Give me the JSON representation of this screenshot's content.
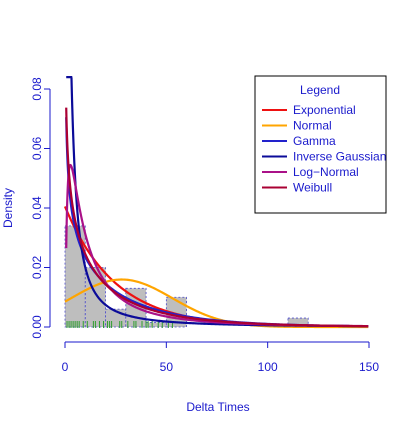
{
  "chart_data": {
    "type": "histogram-density",
    "xlabel": "Delta Times",
    "ylabel": "Density",
    "xlim": [
      0,
      150
    ],
    "ylim": [
      0,
      0.08
    ],
    "x_ticks": [
      "0",
      "50",
      "100",
      "150"
    ],
    "y_ticks": [
      "0.00",
      "0.02",
      "0.04",
      "0.06",
      "0.08"
    ],
    "histogram": {
      "bins": [
        [
          0,
          10
        ],
        [
          10,
          20
        ],
        [
          20,
          30
        ],
        [
          30,
          40
        ],
        [
          40,
          50
        ],
        [
          50,
          60
        ],
        [
          60,
          70
        ],
        [
          70,
          80
        ],
        [
          80,
          90
        ],
        [
          90,
          100
        ],
        [
          100,
          110
        ],
        [
          110,
          120
        ],
        [
          120,
          130
        ],
        [
          130,
          140
        ],
        [
          140,
          150
        ]
      ],
      "density": [
        0.034,
        0.02,
        0.006,
        0.013,
        0.0015,
        0.01,
        0.0,
        0.0,
        0.0,
        0.0,
        0.0,
        0.003,
        0.0,
        0.0,
        0.0
      ],
      "fill": "#bebebe",
      "border": "#4d4dcc"
    },
    "rug": [
      1,
      2,
      3,
      4,
      5,
      6,
      7,
      9,
      11,
      14,
      15,
      17,
      19,
      21,
      22,
      23,
      27,
      28,
      31,
      34,
      35,
      38,
      40,
      41,
      43,
      46,
      48,
      51,
      53
    ],
    "legend": {
      "title": "Legend",
      "position": "top-right",
      "items": [
        {
          "name": "Exponential",
          "color": "#ee1111"
        },
        {
          "name": "Normal",
          "color": "#ffa500"
        },
        {
          "name": "Gamma",
          "color": "#2222cc"
        },
        {
          "name": "Inverse Gaussian",
          "color": "#0b0b99"
        },
        {
          "name": "Log−Normal",
          "color": "#aa1188"
        },
        {
          "name": "Weibull",
          "color": "#aa0033"
        }
      ]
    },
    "curves": [
      {
        "name": "Exponential",
        "color": "#ee1111",
        "dist": "exp",
        "rate": 0.0405
      },
      {
        "name": "Normal",
        "color": "#ffa500",
        "dist": "norm",
        "mean": 28,
        "sd": 25
      },
      {
        "name": "Gamma",
        "color": "#2222cc",
        "dist": "gamma",
        "shape": 0.7,
        "rate": 0.027
      },
      {
        "name": "Inverse Gaussian",
        "color": "#0b0b99",
        "dist": "invgauss",
        "mu": 25,
        "lambda": 2.8
      },
      {
        "name": "Log−Normal",
        "color": "#aa1188",
        "dist": "lnorm",
        "meanlog": 2.55,
        "sdlog": 1.25
      },
      {
        "name": "Weibull",
        "color": "#aa0033",
        "dist": "weibull",
        "shape": 0.78,
        "scale": 22
      }
    ]
  }
}
